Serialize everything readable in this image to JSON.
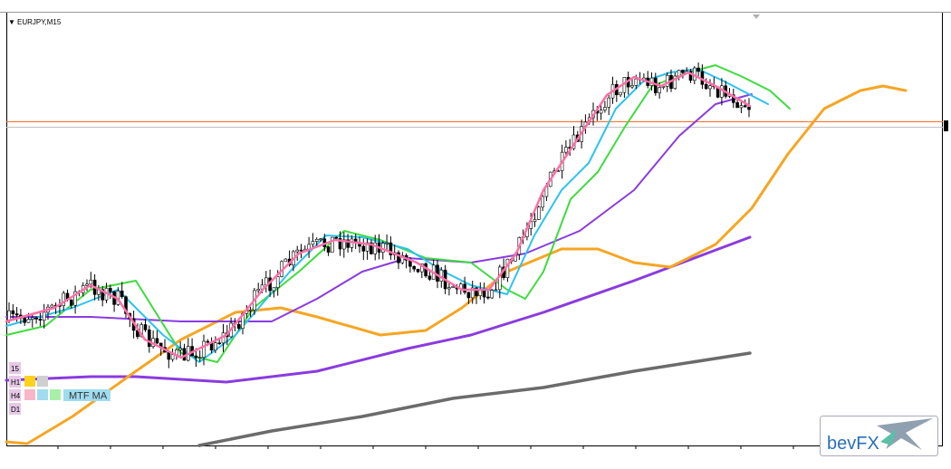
{
  "window": {
    "symbol": "EURJPY,M15"
  },
  "mtf_panel": {
    "timeframes": [
      "15",
      "H1",
      "H4",
      "D1"
    ],
    "label": "MTF MA"
  },
  "logo": {
    "text": "bevFX"
  }
}
